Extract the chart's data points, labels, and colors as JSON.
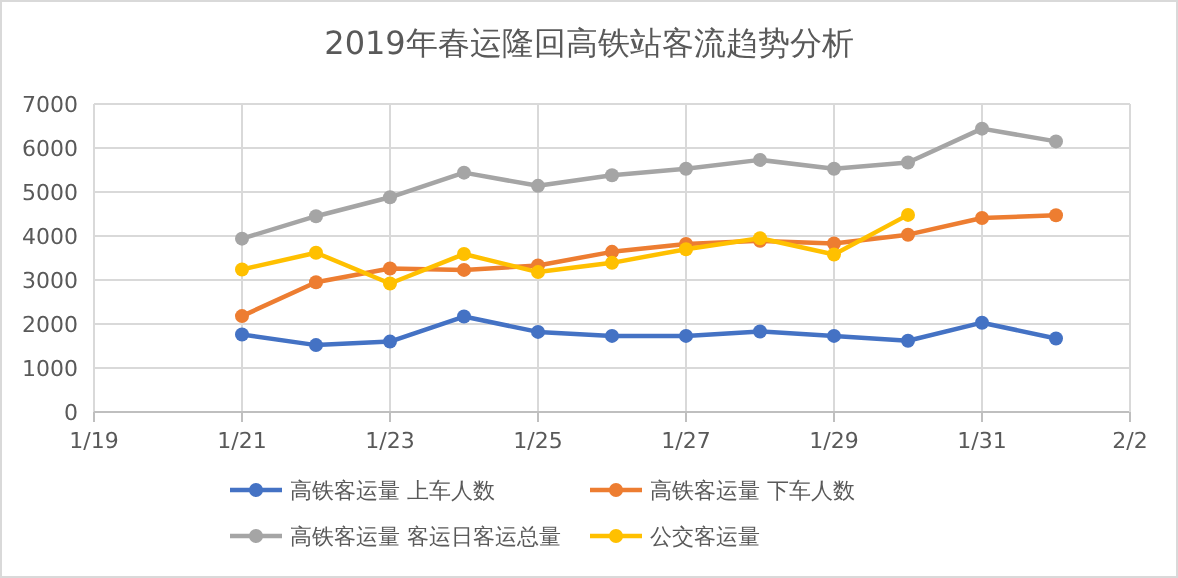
{
  "chart_data": {
    "type": "line",
    "title": "2019年春运隆回高铁站客流趋势分析",
    "x": [
      "--01-21",
      "--01-22",
      "--01-23",
      "--01-24",
      "--01-25",
      "--01-26",
      "--01-27",
      "--01-28",
      "--01-29",
      "--01-30",
      "--01-31",
      "--02-01"
    ],
    "series": [
      {
        "name": "高铁客运量 上车人数",
        "color": "#4472c4",
        "values": [
          1760,
          1520,
          1600,
          2170,
          1820,
          1730,
          1730,
          1830,
          1730,
          1620,
          2030,
          1670
        ]
      },
      {
        "name": "高铁客运量 下车人数",
        "color": "#ed7d31",
        "values": [
          2180,
          2950,
          3260,
          3230,
          3330,
          3640,
          3820,
          3890,
          3830,
          4030,
          4410,
          4470
        ]
      },
      {
        "name": "高铁客运量 客运日客运总量",
        "color": "#a5a5a5",
        "values": [
          3940,
          4450,
          4880,
          5440,
          5140,
          5380,
          5530,
          5730,
          5530,
          5670,
          6440,
          6150
        ]
      },
      {
        "name": "公交客运量",
        "color": "#ffc000",
        "values": [
          3240,
          3620,
          2920,
          3590,
          3180,
          3390,
          3700,
          3950,
          3580,
          4480,
          null,
          null
        ]
      }
    ],
    "xlim": [
      "--01-19",
      "--02-02"
    ],
    "xticks": [
      {
        "value": "--01-19",
        "label": "1/19"
      },
      {
        "value": "--01-21",
        "label": "1/21"
      },
      {
        "value": "--01-23",
        "label": "1/23"
      },
      {
        "value": "--01-25",
        "label": "1/25"
      },
      {
        "value": "--01-27",
        "label": "1/27"
      },
      {
        "value": "--01-29",
        "label": "1/29"
      },
      {
        "value": "--01-31",
        "label": "1/31"
      },
      {
        "value": "--02-02",
        "label": "2/2"
      }
    ],
    "ylim": [
      0,
      7000
    ],
    "yticks": [
      0,
      1000,
      2000,
      3000,
      4000,
      5000,
      6000,
      7000
    ],
    "grid": true,
    "legend": "bottom",
    "marker": "circle",
    "line_style": "solid"
  }
}
